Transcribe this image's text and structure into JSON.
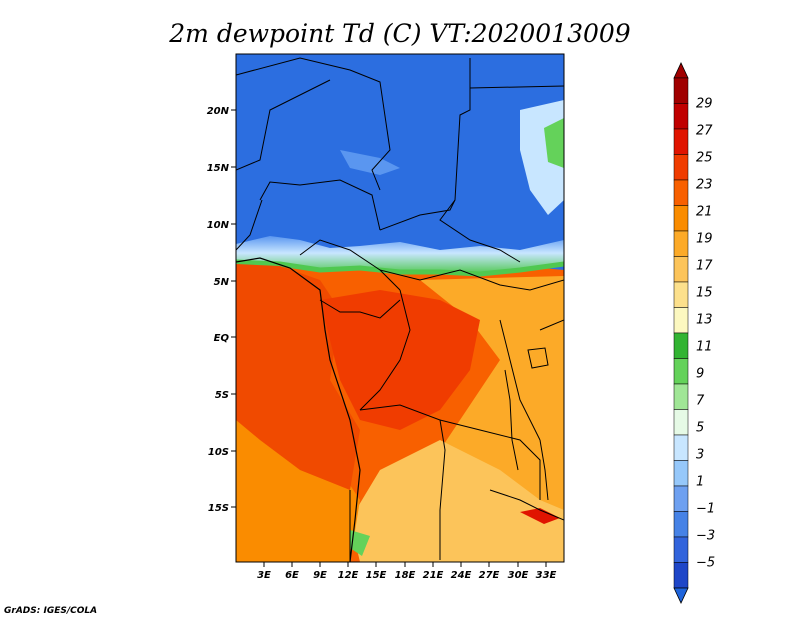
{
  "title": "2m dewpoint Td (C) VT:2020013009",
  "footer": "GrADS: IGES/COLA",
  "map": {
    "lon_ticks": [
      "3E",
      "6E",
      "9E",
      "12E",
      "15E",
      "18E",
      "21E",
      "24E",
      "27E",
      "30E",
      "33E"
    ],
    "lat_ticks": [
      "20N",
      "15N",
      "10N",
      "5N",
      "EQ",
      "5S",
      "10S",
      "15S"
    ]
  },
  "colorbar": {
    "labels": [
      "29",
      "27",
      "25",
      "23",
      "21",
      "19",
      "17",
      "15",
      "13",
      "11",
      "9",
      "7",
      "5",
      "3",
      "1",
      "−1",
      "−3",
      "−5"
    ],
    "colors": [
      "#a00000",
      "#c00000",
      "#e01400",
      "#f03c00",
      "#f86000",
      "#fa8c00",
      "#fcaa28",
      "#fcc45a",
      "#fce08c",
      "#fcf8c0",
      "#32b432",
      "#64d25a",
      "#a0e696",
      "#e6fae6",
      "#c8e6ff",
      "#96c8fa",
      "#6ea0f0",
      "#4682e6",
      "#3264dc",
      "#1e46c8"
    ],
    "above_color": "#a00000",
    "below_color": "#1e64dc"
  },
  "field_colors": {
    "dry_blue": "#2c6ee0",
    "light_blue": "#5a96f0",
    "green_band": "#50c850",
    "warm_red": "#f04a00",
    "orange": "#fa8c00",
    "light_orange": "#fcaa28",
    "cream": "#fcc45a"
  }
}
